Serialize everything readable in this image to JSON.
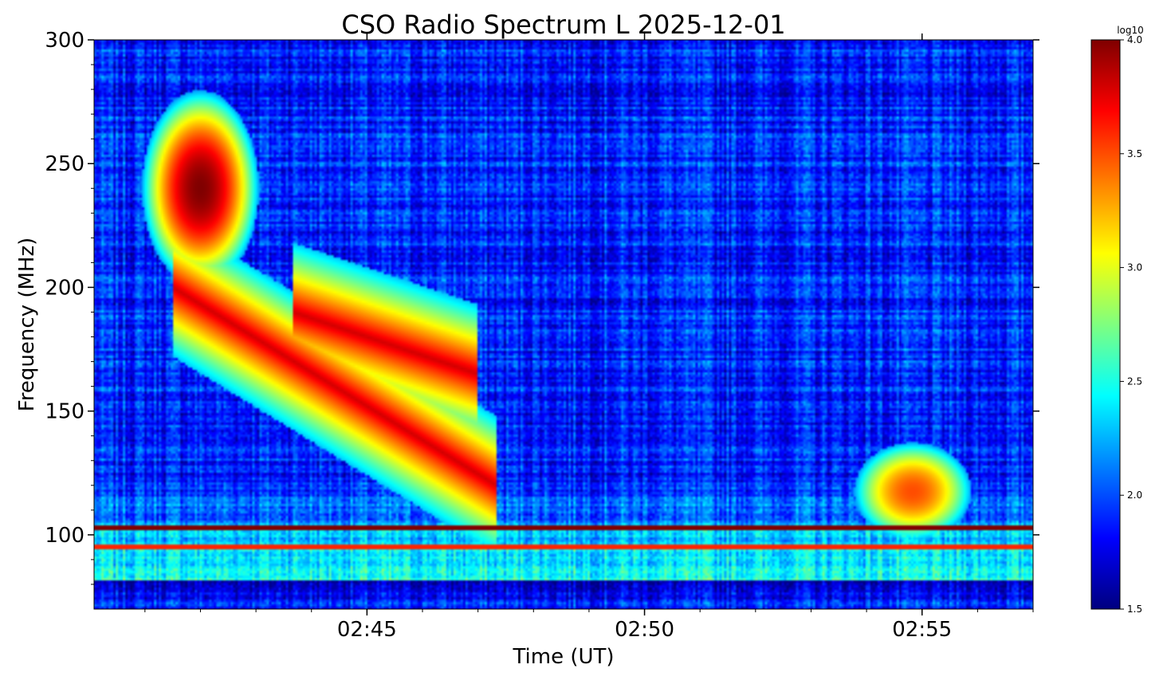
{
  "chart_data": {
    "type": "heatmap",
    "title": "CSO Radio Spectrum L 2025-12-01",
    "xlabel": "Time (UT)",
    "ylabel": "Frequency (MHz)",
    "x_range": [
      "02:40:05",
      "02:57:00"
    ],
    "ylim": [
      70,
      300
    ],
    "x_ticks": [
      "02:45",
      "02:50",
      "02:55"
    ],
    "y_ticks": [
      100,
      150,
      200,
      250,
      300
    ],
    "colorbar": {
      "label": "log10",
      "range": [
        1.5,
        4.0
      ],
      "ticks": [
        "4.0",
        "3.5",
        "3.0",
        "2.5",
        "2.0",
        "1.5"
      ],
      "colormap": "jet",
      "colors": [
        "#00007f",
        "#0000ff",
        "#007fff",
        "#00ffff",
        "#7fff7f",
        "#ffff00",
        "#ff7f00",
        "#ff0000",
        "#7f0000"
      ]
    },
    "background_level": 1.9,
    "features": [
      {
        "kind": "type II burst core",
        "time": [
          "02:41:20",
          "02:42:40"
        ],
        "freq": [
          215,
          265
        ],
        "level": 4.0
      },
      {
        "kind": "type II fundamental lane",
        "start": [
          "02:41:30",
          200
        ],
        "end": [
          "02:47:20",
          120
        ],
        "level": 3.8
      },
      {
        "kind": "type II harmonic lane",
        "start": [
          "02:43:40",
          190
        ],
        "end": [
          "02:47:00",
          165
        ],
        "level": 3.8
      },
      {
        "kind": "interference band",
        "freq": 103,
        "level": 4.0
      },
      {
        "kind": "interference band",
        "freq": 95,
        "level": 3.6
      },
      {
        "kind": "late burst",
        "time": [
          "02:54:10",
          "02:55:30"
        ],
        "freq": [
          105,
          130
        ],
        "level": 3.5
      }
    ]
  }
}
